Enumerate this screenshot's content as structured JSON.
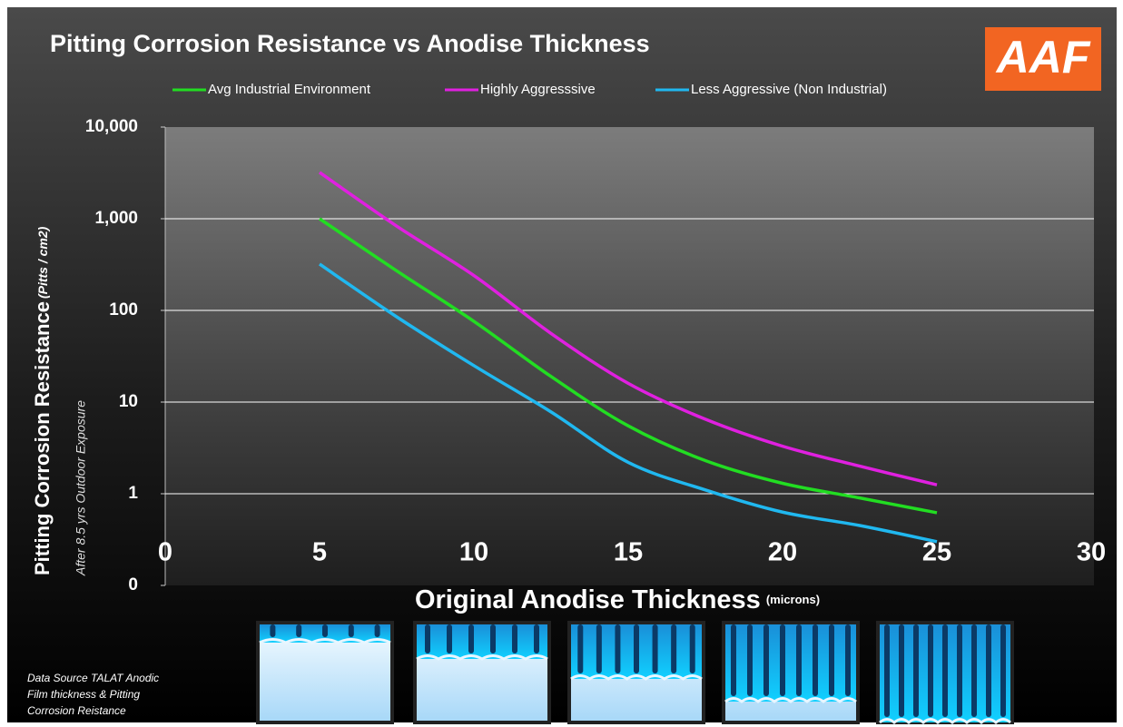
{
  "logo": "AAF",
  "chart_data": {
    "type": "line",
    "title": "Pitting Corrosion Resistance vs Anodise Thickness",
    "y_label": "Pitting Corrosion Resistance",
    "y_label_unit": "(Pitts / cm2)",
    "subtitle": "After 8.5 yrs Outdoor Exposure",
    "x_label": "Original Anodise Thickness",
    "x_label_unit": "(microns)",
    "x": [
      5,
      7.5,
      10,
      12.5,
      15,
      17.5,
      20,
      22.5,
      25
    ],
    "series": [
      {
        "name": "Avg Industrial Environment",
        "color": "#22dd22",
        "values": [
          1000,
          270,
          76,
          19,
          5.5,
          2.3,
          1.3,
          0.9,
          0.62
        ]
      },
      {
        "name": "Highly Aggresssive",
        "color": "#e020e0",
        "values": [
          3200,
          830,
          240,
          56,
          16,
          6.5,
          3.3,
          2,
          1.25
        ]
      },
      {
        "name": "Less Aggressive (Non Industrial)",
        "color": "#20b8f0",
        "values": [
          320,
          85,
          25,
          7.8,
          2.2,
          1.1,
          0.63,
          0.45,
          0.3
        ]
      }
    ],
    "xlim": [
      0,
      30
    ],
    "xticks": [
      0,
      5,
      10,
      15,
      20,
      25,
      30
    ],
    "ylim": [
      0.1,
      10000
    ],
    "yticks": [
      {
        "value": 0.1,
        "label": "0"
      },
      1,
      10,
      100,
      {
        "value": 1000,
        "label": "1,000"
      },
      {
        "value": 10000,
        "label": "10,000"
      }
    ],
    "log_scale": "y",
    "grid": true,
    "legend": "top"
  },
  "source_note": [
    "Data Source TALAT Anodic",
    "Film thickness & Pitting",
    "Corrosion Reistance"
  ]
}
